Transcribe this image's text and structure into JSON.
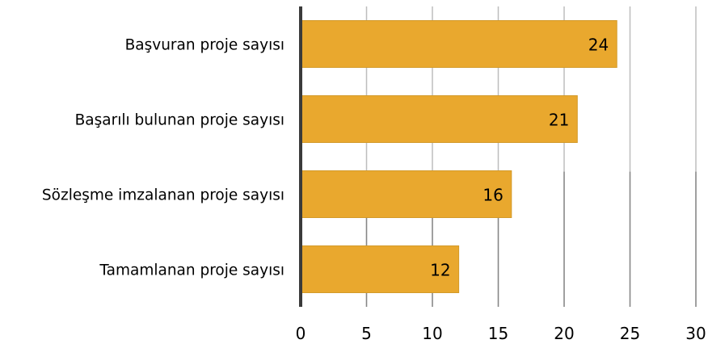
{
  "chart_data": {
    "type": "bar",
    "orientation": "horizontal",
    "categories": [
      "Başvuran proje sayısı",
      "Başarılı bulunan proje sayısı",
      "Sözleşme imzalanan proje sayısı",
      "Tamamlanan proje sayısı"
    ],
    "values": [
      24,
      21,
      16,
      12
    ],
    "data_labels": [
      "24",
      "21",
      "16",
      "12"
    ],
    "title": "",
    "xlabel": "",
    "ylabel": "",
    "xlim": [
      0,
      30
    ],
    "x_ticks": [
      0,
      5,
      10,
      15,
      20,
      25,
      30
    ],
    "x_tick_labels": [
      "0",
      "5",
      "10",
      "15",
      "20",
      "25",
      "30"
    ],
    "grid": "vertical",
    "legend": "none",
    "colors": {
      "bar_fill": "#E9A82E",
      "bar_edge": "#D39A2A",
      "grid": "#BDBDBD",
      "grid_shadow": "#5A5A5A",
      "axis": "#3A3A3A"
    }
  }
}
